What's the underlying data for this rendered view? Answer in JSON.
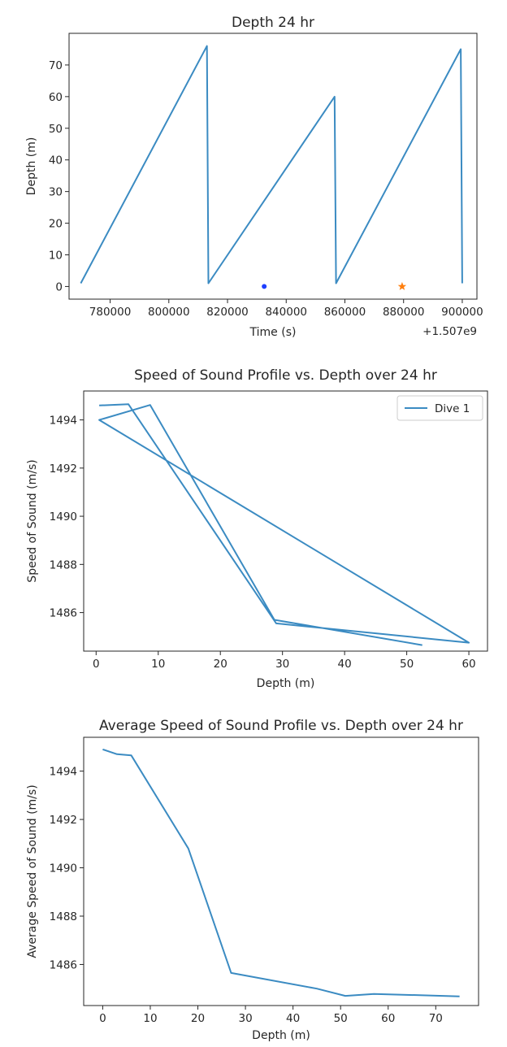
{
  "chart_data": [
    {
      "type": "line",
      "title": "Depth 24 hr",
      "xlabel": "Time (s)",
      "ylabel": "Depth (m)",
      "x_offset_label": "+1.507e9",
      "xlim": [
        766000,
        905000
      ],
      "ylim": [
        -4,
        80
      ],
      "xticks": [
        780000,
        800000,
        820000,
        840000,
        860000,
        880000,
        900000
      ],
      "xtick_labels": [
        "780000",
        "800000",
        "820000",
        "840000",
        "860000",
        "880000",
        "900000"
      ],
      "yticks": [
        0,
        10,
        20,
        30,
        40,
        50,
        60,
        70
      ],
      "ytick_labels": [
        "0",
        "10",
        "20",
        "30",
        "40",
        "50",
        "60",
        "70"
      ],
      "colors": {
        "line": "#3b8bc2",
        "dot": "#1f3fff",
        "star": "#ff7f0e"
      },
      "series": [
        {
          "x": [
            770000,
            813000,
            813500,
            856500,
            857000,
            899500,
            900000
          ],
          "y": [
            1,
            76,
            1,
            60,
            1,
            75,
            1
          ]
        }
      ],
      "markers": [
        {
          "shape": "dot",
          "x": 832500,
          "y": 0
        },
        {
          "shape": "star",
          "x": 879500,
          "y": 0
        }
      ]
    },
    {
      "type": "line",
      "title": "Speed of Sound Profile vs. Depth over 24 hr",
      "xlabel": "Depth (m)",
      "ylabel": "Speed of Sound (m/s)",
      "xlim": [
        -2,
        63
      ],
      "ylim": [
        1484.4,
        1495.2
      ],
      "xticks": [
        0,
        10,
        20,
        30,
        40,
        50,
        60
      ],
      "xtick_labels": [
        "0",
        "10",
        "20",
        "30",
        "40",
        "50",
        "60"
      ],
      "yticks": [
        1486,
        1488,
        1490,
        1492,
        1494
      ],
      "ytick_labels": [
        "1486",
        "1488",
        "1490",
        "1492",
        "1494"
      ],
      "legend": {
        "position": "upper right",
        "entries": [
          "Dive 1"
        ]
      },
      "colors": {
        "line": "#3b8bc2"
      },
      "series": [
        {
          "name": "Dive 1",
          "x": [
            0.5,
            5.2,
            29,
            60,
            0.5,
            8.7,
            28.7,
            52.5
          ],
          "y": [
            1494.6,
            1494.65,
            1485.55,
            1484.75,
            1494.0,
            1494.62,
            1485.7,
            1484.65
          ]
        }
      ]
    },
    {
      "type": "line",
      "title": "Average Speed of Sound Profile vs. Depth over 24 hr",
      "xlabel": "Depth (m)",
      "ylabel": "Average Speed of Sound (m/s)",
      "xlim": [
        -4,
        79
      ],
      "ylim": [
        1484.3,
        1495.4
      ],
      "xticks": [
        0,
        10,
        20,
        30,
        40,
        50,
        60,
        70
      ],
      "xtick_labels": [
        "0",
        "10",
        "20",
        "30",
        "40",
        "50",
        "60",
        "70"
      ],
      "yticks": [
        1486,
        1488,
        1490,
        1492,
        1494
      ],
      "ytick_labels": [
        "1486",
        "1488",
        "1490",
        "1492",
        "1494"
      ],
      "colors": {
        "line": "#3b8bc2"
      },
      "series": [
        {
          "x": [
            0,
            3,
            6,
            18,
            27,
            45,
            51,
            57,
            75
          ],
          "y": [
            1494.9,
            1494.7,
            1494.65,
            1490.8,
            1485.65,
            1485.0,
            1484.7,
            1484.78,
            1484.68
          ]
        }
      ]
    }
  ]
}
